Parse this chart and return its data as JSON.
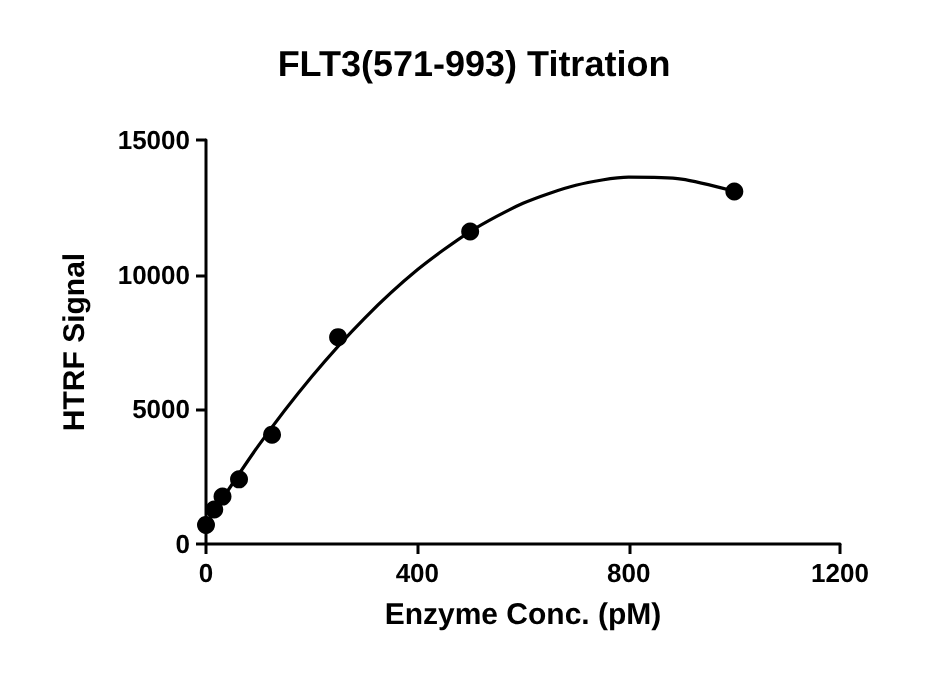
{
  "chart_data": {
    "type": "scatter",
    "title": "FLT3(571-993) Titration",
    "xlabel": "Enzyme Conc. (pM)",
    "ylabel": "HTRF Signal",
    "xlim": [
      0,
      1200
    ],
    "xticks": [
      0,
      400,
      800,
      1200
    ],
    "ylim": [
      0,
      15000
    ],
    "yticks": [
      0,
      5000,
      10000,
      15000
    ],
    "grid": false,
    "marker": "circle",
    "series": [
      {
        "color": "#000000",
        "x": [
          0,
          15.6,
          31.25,
          62.5,
          125,
          250,
          500,
          1000
        ],
        "values": [
          710,
          1280,
          1760,
          2400,
          4060,
          7680,
          11600,
          13090
        ]
      },
      {
        "type": "line",
        "color": "#000000",
        "marker": "none",
        "line_style": "solid",
        "x": [
          0,
          100,
          200,
          300,
          400,
          500,
          600,
          700,
          800,
          900,
          1000
        ],
        "values": [
          750,
          3670,
          6210,
          8380,
          10180,
          11600,
          12650,
          13320,
          13620,
          13550,
          13100
        ]
      }
    ]
  }
}
